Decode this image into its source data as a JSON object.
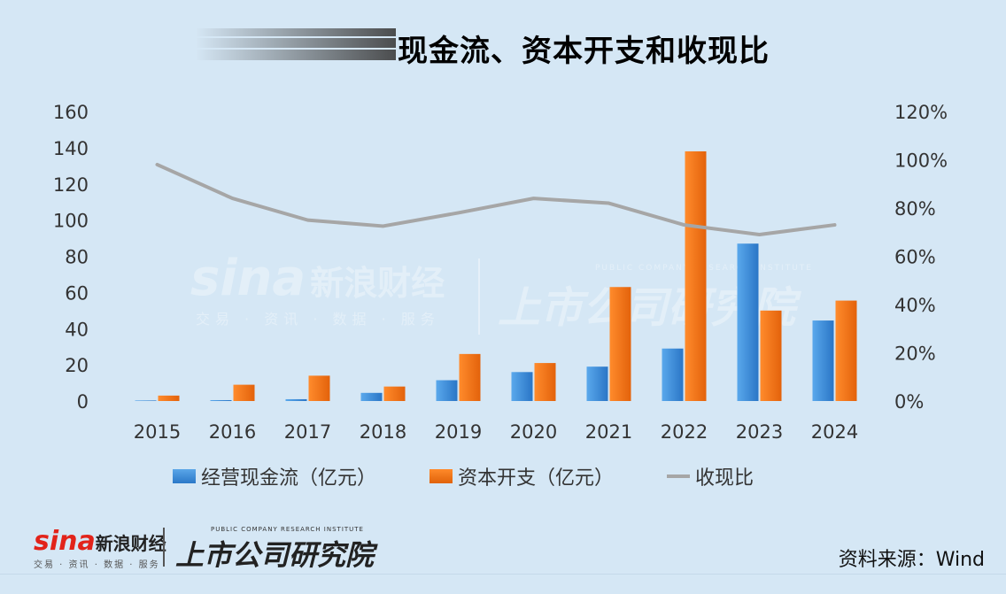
{
  "title": "现金流、资本开支和收现比",
  "chart_data": {
    "type": "bar",
    "categories": [
      "2015",
      "2016",
      "2017",
      "2018",
      "2019",
      "2020",
      "2021",
      "2022",
      "2023",
      "2024"
    ],
    "series": [
      {
        "name": "经营现金流（亿元）",
        "axis": "left",
        "kind": "bar",
        "color": "#3b8fe0",
        "values": [
          0.3,
          0.5,
          1,
          4.5,
          11.5,
          16,
          19,
          29,
          87,
          44.5
        ]
      },
      {
        "name": "资本开支（亿元）",
        "axis": "left",
        "kind": "bar",
        "color": "#f37316",
        "values": [
          3,
          9,
          14,
          8,
          26,
          21,
          63,
          138,
          50,
          55.5
        ]
      },
      {
        "name": "收现比",
        "axis": "right",
        "kind": "line",
        "color": "#a6a6a6",
        "values": [
          98,
          84,
          75,
          72.5,
          78,
          84,
          82,
          73,
          69,
          73
        ]
      }
    ],
    "ylim": [
      0,
      160
    ],
    "yticks": [
      "0",
      "20",
      "40",
      "60",
      "80",
      "100",
      "120",
      "140",
      "160"
    ],
    "y2lim": [
      0,
      120
    ],
    "y2ticks": [
      "0%",
      "20%",
      "40%",
      "60%",
      "80%",
      "100%",
      "120%"
    ],
    "legend_position": "bottom",
    "grid": false
  },
  "legend": {
    "ocf": "经营现金流（亿元）",
    "capex": "资本开支（亿元）",
    "ratio": "收现比"
  },
  "watermark": {
    "sina": "sina",
    "cn": "新浪财经",
    "sub": "交易 · 资讯 · 数据 · 服务",
    "research_en": "PUBLIC COMPANY RESEARCH INSTITUTE",
    "research_cn": "上市公司研究院"
  },
  "logo": {
    "sina": "sina",
    "cn": "新浪财经",
    "sub": "交易 · 资讯 · 数据 · 服务",
    "research_en": "PUBLIC COMPANY RESEARCH INSTITUTE",
    "research_cn": "上市公司研究院"
  },
  "source": "资料来源：Wind"
}
